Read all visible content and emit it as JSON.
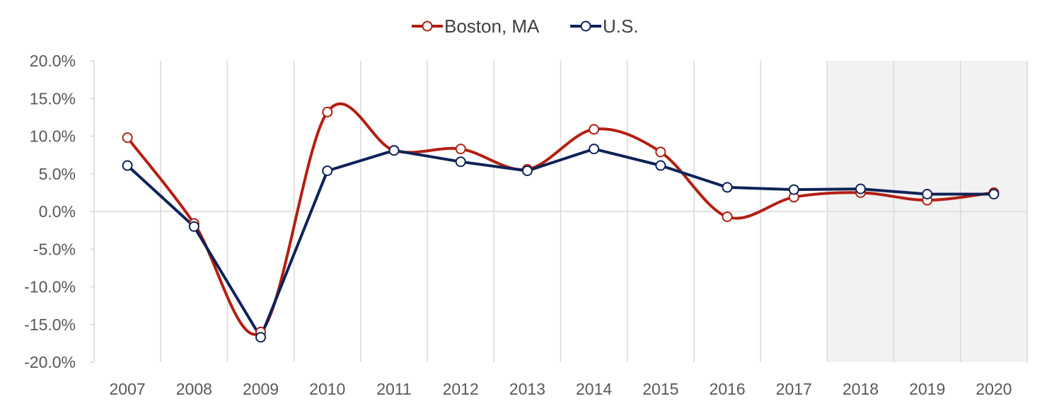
{
  "chart_data": {
    "type": "line",
    "x": [
      "2007",
      "2008",
      "2009",
      "2010",
      "2011",
      "2012",
      "2013",
      "2014",
      "2015",
      "2016",
      "2017",
      "2018",
      "2019",
      "2020"
    ],
    "ylim": [
      -20,
      20
    ],
    "y_ticks": [
      "20.0%",
      "15.0%",
      "10.0%",
      "5.0%",
      "0.0%",
      "-5.0%",
      "-10.0%",
      "-15.0%",
      "-20.0%"
    ],
    "y_tick_values": [
      20,
      15,
      10,
      5,
      0,
      -5,
      -10,
      -15,
      -20
    ],
    "grid": "vertical",
    "legend": "top-center",
    "shaded_x_range": [
      "2018",
      "2020"
    ],
    "shaded_color": "#f2f2f2",
    "series": [
      {
        "name": "Boston, MA",
        "color": "#b21f12",
        "smooth": true,
        "values": [
          9.8,
          -1.6,
          -16.0,
          13.2,
          8.1,
          8.3,
          5.6,
          10.9,
          7.9,
          -0.7,
          1.9,
          2.5,
          1.5,
          2.5
        ]
      },
      {
        "name": "U.S.",
        "color": "#0d2257",
        "smooth": false,
        "values": [
          6.1,
          -2.0,
          -16.7,
          5.4,
          8.1,
          6.6,
          5.4,
          8.3,
          6.1,
          3.2,
          2.9,
          3.0,
          2.3,
          2.3
        ]
      }
    ]
  }
}
